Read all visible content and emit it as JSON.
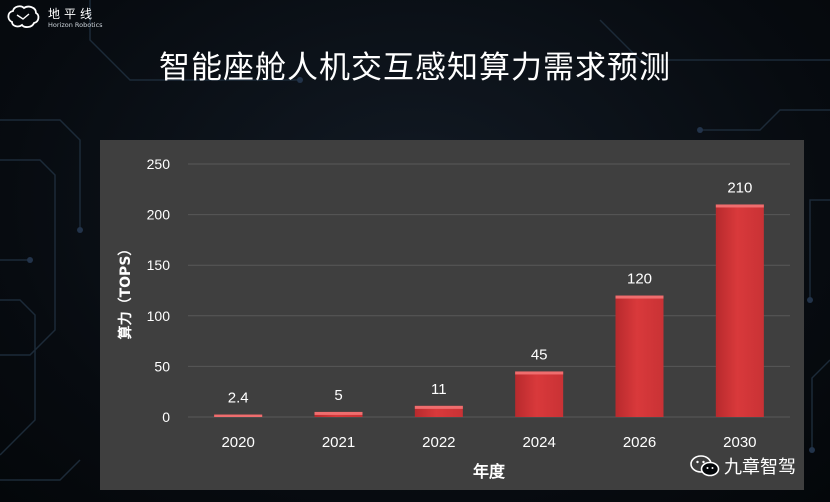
{
  "brand": {
    "name_cn": "地平线",
    "name_en": "Horizon Robotics"
  },
  "slide": {
    "title": "智能座舱人机交互感知算力需求预测"
  },
  "watermark": {
    "text": "九章智驾"
  },
  "chart_data": {
    "type": "bar",
    "categories": [
      "2020",
      "2021",
      "2022",
      "2024",
      "2026",
      "2030"
    ],
    "values": [
      2.4,
      5,
      11,
      45,
      120,
      210
    ],
    "data_labels": [
      "2.4",
      "5",
      "11",
      "45",
      "120",
      "210"
    ],
    "xlabel": "年度",
    "ylabel": "算力（TOPS）",
    "ylim": [
      0,
      250
    ],
    "yticks": [
      0,
      50,
      100,
      150,
      200,
      250
    ],
    "grid": true,
    "bar_color": "#d9393b",
    "background": "#3f3f3f"
  }
}
